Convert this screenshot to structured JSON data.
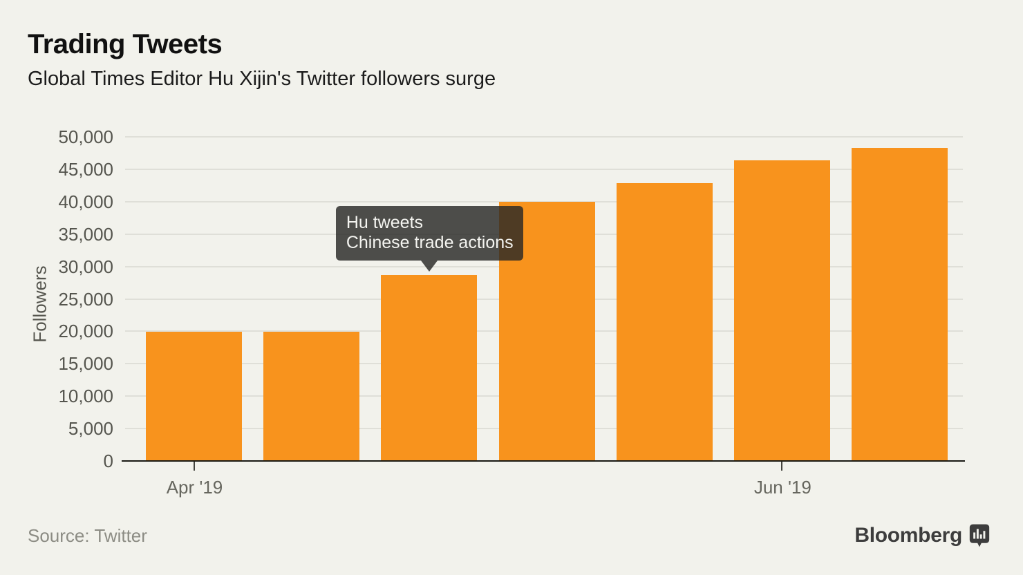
{
  "header": {
    "title": "Trading Tweets",
    "subtitle": "Global Times Editor Hu Xijin's Twitter followers surge"
  },
  "chart_data": {
    "type": "bar",
    "title": "Trading Tweets",
    "subtitle": "Global Times Editor Hu Xijin's Twitter followers surge",
    "ylabel": "Followers",
    "xlabel": "",
    "ylim": [
      0,
      50000
    ],
    "ytick_step": 5000,
    "grid": true,
    "legend": false,
    "bar_color": "#F8931D",
    "values": [
      19900,
      19900,
      28700,
      40000,
      42900,
      46400,
      48300
    ],
    "yticks": [
      {
        "value": 0,
        "label": "0"
      },
      {
        "value": 5000,
        "label": "5,000"
      },
      {
        "value": 10000,
        "label": "10,000"
      },
      {
        "value": 15000,
        "label": "15,000"
      },
      {
        "value": 20000,
        "label": "20,000"
      },
      {
        "value": 25000,
        "label": "25,000"
      },
      {
        "value": 30000,
        "label": "30,000"
      },
      {
        "value": 35000,
        "label": "35,000"
      },
      {
        "value": 40000,
        "label": "40,000"
      },
      {
        "value": 45000,
        "label": "45,000"
      },
      {
        "value": 50000,
        "label": "50,000"
      }
    ],
    "xticks": [
      {
        "label": "Apr '19",
        "bar_index": 0
      },
      {
        "label": "Jun '19",
        "bar_index": 5
      }
    ],
    "annotation": {
      "lines": [
        "Hu tweets",
        "Chinese trade actions"
      ],
      "bar_index": 2
    }
  },
  "footer": {
    "source": "Source: Twitter",
    "brand": "Bloomberg",
    "brand_icon": "bloomberg-chart-bubble-icon"
  },
  "colors": {
    "background": "#F2F2EC",
    "bar": "#F8931D",
    "tooltip_bg": "rgba(40,40,38,0.82)",
    "axis": "#191914",
    "gridline": "#DFDFD8",
    "tick_text": "#55554E",
    "source_text": "#8C8C84",
    "brand_text": "#3D3D3D"
  }
}
